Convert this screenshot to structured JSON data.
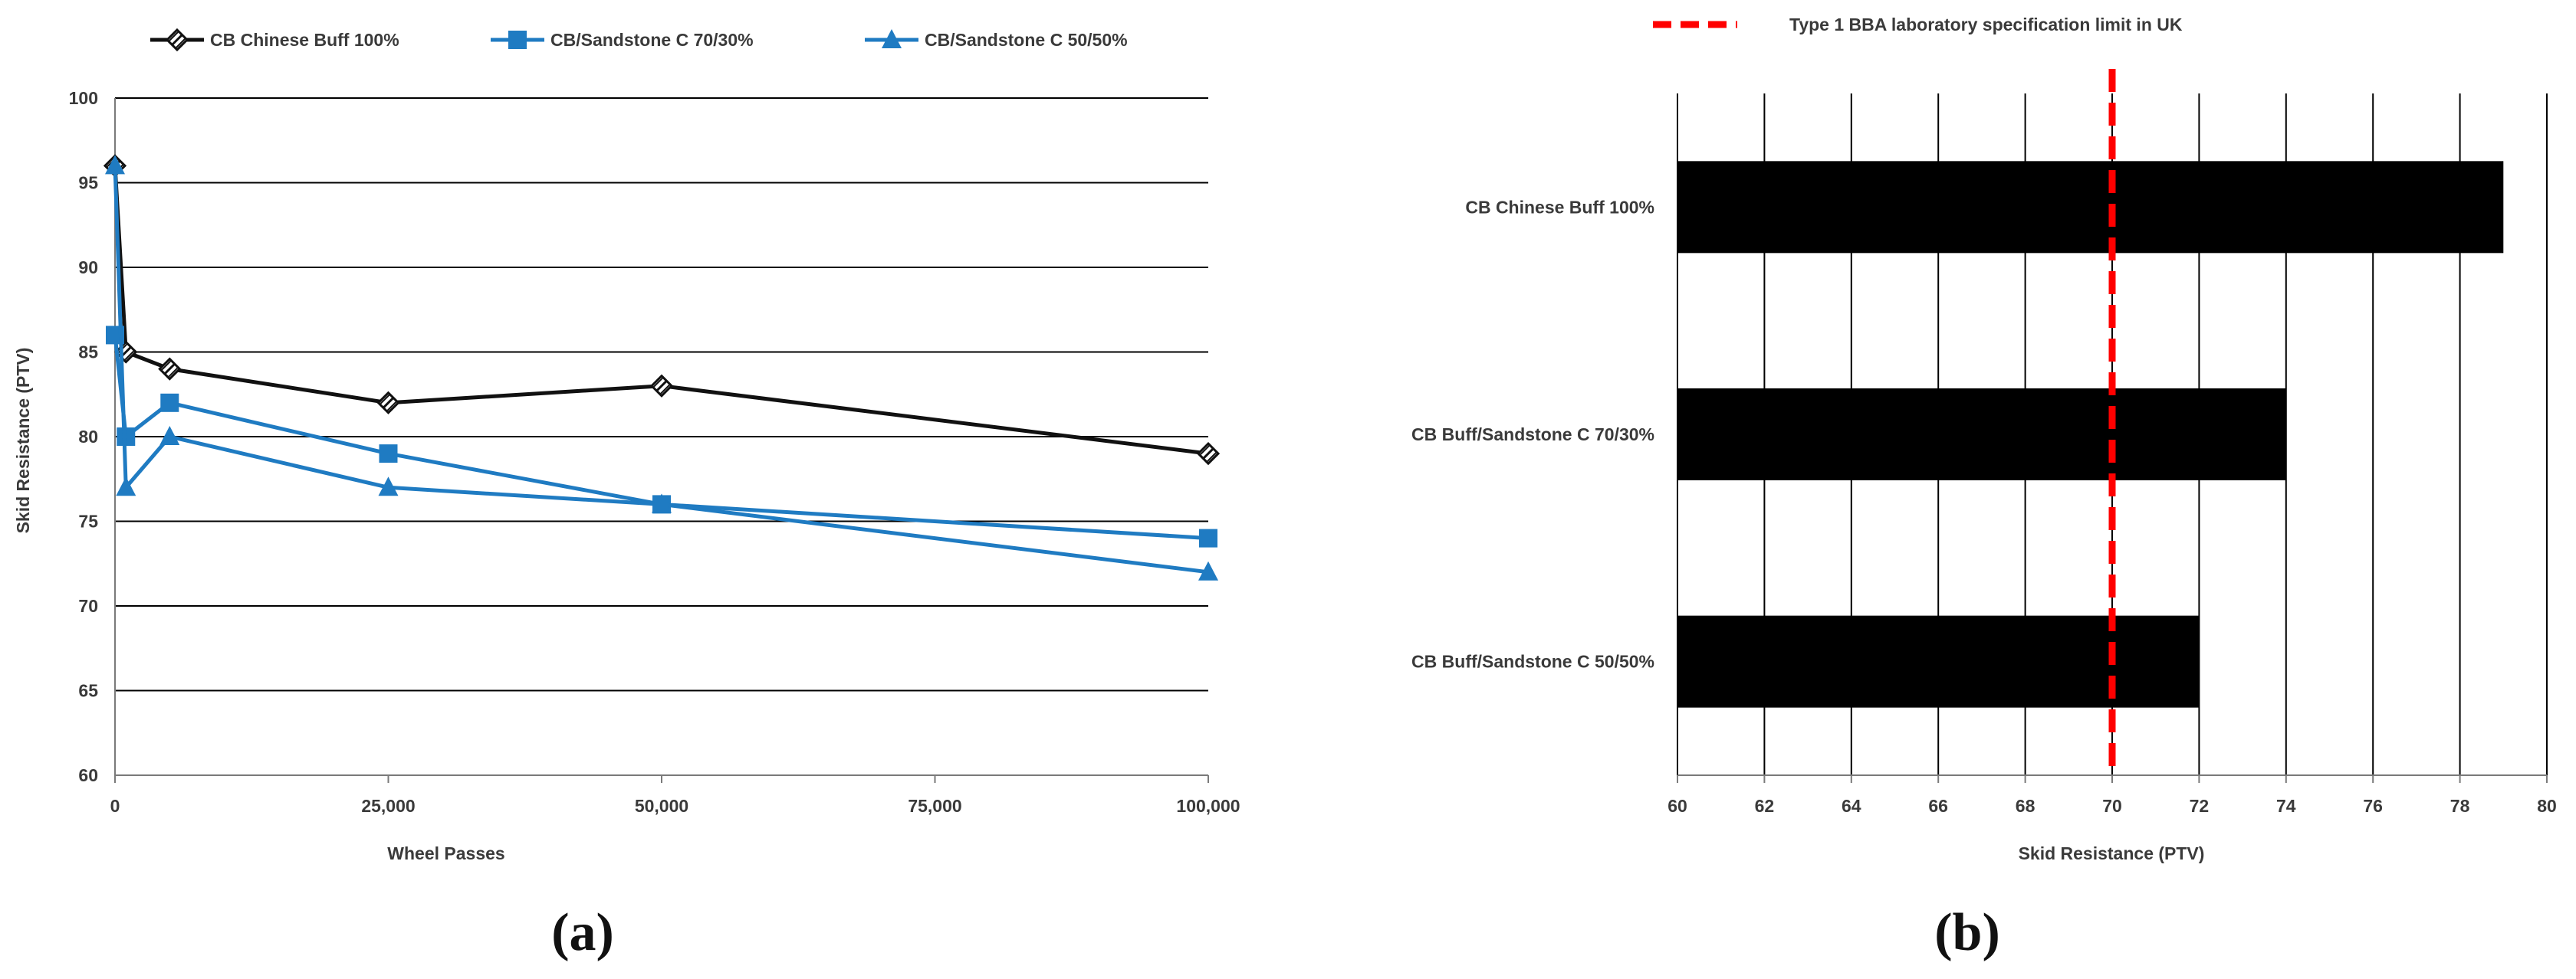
{
  "chart_data": [
    {
      "type": "line",
      "panel_label": "(a)",
      "xlabel": "Wheel Passes",
      "ylabel": "Skid Resistance (PTV)",
      "xlim": [
        0,
        100000
      ],
      "ylim": [
        60,
        100
      ],
      "x_ticks": [
        0,
        25000,
        50000,
        75000,
        100000
      ],
      "x_tick_labels": [
        "0",
        "25,000",
        "50,000",
        "75,000",
        "100,000"
      ],
      "y_ticks": [
        60,
        65,
        70,
        75,
        80,
        85,
        90,
        95,
        100
      ],
      "y_tick_labels": [
        "60",
        "65",
        "70",
        "75",
        "80",
        "85",
        "90",
        "95",
        "100"
      ],
      "grid": "horizontal",
      "legend_position": "top",
      "series": [
        {
          "name": "CB Chinese Buff 100%",
          "color": "#111111",
          "marker": "hatched-diamond",
          "x": [
            0,
            1000,
            5000,
            25000,
            50000,
            100000
          ],
          "y": [
            96,
            85,
            84,
            82,
            83,
            79
          ]
        },
        {
          "name": "CB/Sandstone C 70/30%",
          "color": "#1f7bc2",
          "marker": "square",
          "x": [
            0,
            1000,
            5000,
            25000,
            50000,
            100000
          ],
          "y": [
            86,
            80,
            82,
            79,
            76,
            74
          ]
        },
        {
          "name": "CB/Sandstone C 50/50%",
          "color": "#1f7bc2",
          "marker": "triangle",
          "x": [
            0,
            1000,
            5000,
            25000,
            50000,
            100000
          ],
          "y": [
            96,
            77,
            80,
            77,
            76,
            72
          ]
        }
      ]
    },
    {
      "type": "bar",
      "orientation": "horizontal",
      "panel_label": "(b)",
      "xlabel": "Skid Resistance (PTV)",
      "xlim": [
        60,
        80
      ],
      "x_ticks": [
        60,
        62,
        64,
        66,
        68,
        70,
        72,
        74,
        76,
        78,
        80
      ],
      "x_tick_labels": [
        "60",
        "62",
        "64",
        "66",
        "68",
        "70",
        "72",
        "74",
        "76",
        "78",
        "80"
      ],
      "grid": "vertical",
      "bar_color": "#000000",
      "categories": [
        "CB Chinese Buff 100%",
        "CB Buff/Sandstone C 70/30%",
        "CB Buff/Sandstone C 50/50%"
      ],
      "values": [
        79,
        74,
        72
      ],
      "reference_line": {
        "value": 70,
        "color": "#ff0000",
        "style": "dashed",
        "label": "Type 1 BBA laboratory specification limit in UK"
      },
      "legend_position": "top"
    }
  ]
}
